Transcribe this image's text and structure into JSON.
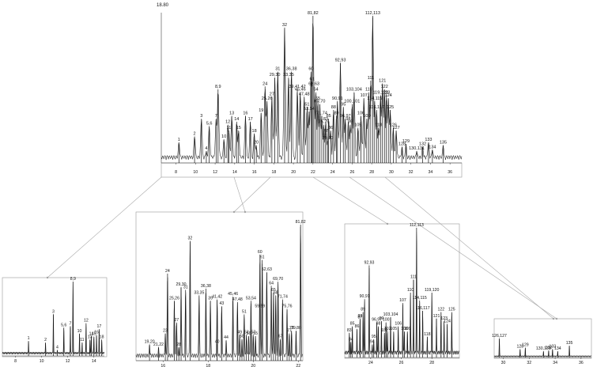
{
  "chart_data": [
    {
      "type": "line",
      "panel": "main",
      "ylabel": "",
      "y_top_label": "18.80",
      "xlabel": "",
      "x_ticks": [
        "8",
        "10",
        "12",
        "14",
        "16",
        "18",
        "20",
        "22",
        "24",
        "26",
        "28",
        "30",
        "32",
        "34",
        "36"
      ],
      "xlim": [
        6.5,
        37.2
      ],
      "ylim": [
        0,
        100
      ],
      "peaks": [
        {
          "label": "1",
          "x": 8.3,
          "y": 14
        },
        {
          "label": "2",
          "x": 9.9,
          "y": 18
        },
        {
          "label": "3",
          "x": 10.6,
          "y": 30
        },
        {
          "label": "4",
          "x": 11.1,
          "y": 8
        },
        {
          "label": "5,6",
          "x": 11.4,
          "y": 25
        },
        {
          "label": "7",
          "x": 12.1,
          "y": 30
        },
        {
          "label": "8,9",
          "x": 12.3,
          "y": 50
        },
        {
          "label": "10",
          "x": 12.9,
          "y": 16
        },
        {
          "label": "11",
          "x": 13.4,
          "y": 22
        },
        {
          "label": "12",
          "x": 13.3,
          "y": 26
        },
        {
          "label": "13",
          "x": 13.7,
          "y": 32
        },
        {
          "label": "14",
          "x": 14.2,
          "y": 28
        },
        {
          "label": "15",
          "x": 14.4,
          "y": 22
        },
        {
          "label": "16",
          "x": 15.1,
          "y": 32
        },
        {
          "label": "17",
          "x": 15.6,
          "y": 28
        },
        {
          "label": "18",
          "x": 16.0,
          "y": 20
        },
        {
          "label": "19",
          "x": 16.7,
          "y": 34
        },
        {
          "label": "20",
          "x": 16.2,
          "y": 12
        },
        {
          "label": "24",
          "x": 17.1,
          "y": 52
        },
        {
          "label": "25,26",
          "x": 17.3,
          "y": 42
        },
        {
          "label": "27",
          "x": 17.8,
          "y": 45
        },
        {
          "label": "29,30",
          "x": 18.1,
          "y": 58
        },
        {
          "label": "31",
          "x": 18.4,
          "y": 62
        },
        {
          "label": "32",
          "x": 19.1,
          "y": 92
        },
        {
          "label": "33,35",
          "x": 19.5,
          "y": 58
        },
        {
          "label": "36,38",
          "x": 19.8,
          "y": 62
        },
        {
          "label": "39,41,42",
          "x": 20.4,
          "y": 50
        },
        {
          "label": "45,46",
          "x": 20.7,
          "y": 48
        },
        {
          "label": "47,48",
          "x": 21.1,
          "y": 45
        },
        {
          "label": "51",
          "x": 21.4,
          "y": 38
        },
        {
          "label": "53,54",
          "x": 21.6,
          "y": 35
        },
        {
          "label": "60",
          "x": 21.8,
          "y": 62
        },
        {
          "label": "61",
          "x": 21.9,
          "y": 55
        },
        {
          "label": "62,63",
          "x": 22.1,
          "y": 52
        },
        {
          "label": "64",
          "x": 22.3,
          "y": 48
        },
        {
          "label": "65",
          "x": 22.5,
          "y": 42
        },
        {
          "label": "69,70",
          "x": 22.7,
          "y": 40
        },
        {
          "label": "71,74",
          "x": 22.9,
          "y": 32
        },
        {
          "label": "75,76",
          "x": 23.1,
          "y": 26
        },
        {
          "label": "77",
          "x": 23.3,
          "y": 20
        },
        {
          "label": "79,80",
          "x": 23.5,
          "y": 15
        },
        {
          "label": "81,82",
          "x": 22.0,
          "y": 100
        },
        {
          "label": "83",
          "x": 23.3,
          "y": 28
        },
        {
          "label": "85",
          "x": 23.6,
          "y": 30
        },
        {
          "label": "86",
          "x": 23.8,
          "y": 22
        },
        {
          "label": "88",
          "x": 24.1,
          "y": 36
        },
        {
          "label": "89",
          "x": 24.4,
          "y": 32
        },
        {
          "label": "90,91",
          "x": 24.5,
          "y": 42
        },
        {
          "label": "92,93",
          "x": 24.8,
          "y": 68
        },
        {
          "label": "95",
          "x": 25.1,
          "y": 38
        },
        {
          "label": "96,97",
          "x": 25.3,
          "y": 30
        },
        {
          "label": "98",
          "x": 25.6,
          "y": 28
        },
        {
          "label": "99",
          "x": 25.8,
          "y": 26
        },
        {
          "label": "100,101",
          "x": 26.0,
          "y": 40
        },
        {
          "label": "103,104",
          "x": 26.2,
          "y": 48
        },
        {
          "label": "105",
          "x": 26.6,
          "y": 24
        },
        {
          "label": "106",
          "x": 26.9,
          "y": 32
        },
        {
          "label": "107",
          "x": 27.2,
          "y": 44
        },
        {
          "label": "109",
          "x": 27.5,
          "y": 30
        },
        {
          "label": "110",
          "x": 27.7,
          "y": 48
        },
        {
          "label": "111",
          "x": 27.9,
          "y": 56
        },
        {
          "label": "112,113",
          "x": 28.1,
          "y": 100
        },
        {
          "label": "114,115",
          "x": 28.3,
          "y": 42
        },
        {
          "label": "116,117",
          "x": 28.5,
          "y": 36
        },
        {
          "label": "118",
          "x": 28.7,
          "y": 24
        },
        {
          "label": "119,120",
          "x": 28.9,
          "y": 46
        },
        {
          "label": "121",
          "x": 29.1,
          "y": 54
        },
        {
          "label": "122",
          "x": 29.3,
          "y": 50
        },
        {
          "label": "123",
          "x": 29.5,
          "y": 46
        },
        {
          "label": "124",
          "x": 29.7,
          "y": 44
        },
        {
          "label": "125",
          "x": 29.9,
          "y": 36
        },
        {
          "label": "126",
          "x": 30.2,
          "y": 24
        },
        {
          "label": "127",
          "x": 30.5,
          "y": 22
        },
        {
          "label": "128",
          "x": 31.1,
          "y": 11
        },
        {
          "label": "129",
          "x": 31.5,
          "y": 13
        },
        {
          "label": "130,131",
          "x": 32.6,
          "y": 8
        },
        {
          "label": "132",
          "x": 33.2,
          "y": 11
        },
        {
          "label": "133",
          "x": 33.8,
          "y": 14
        },
        {
          "label": "134",
          "x": 34.2,
          "y": 9
        },
        {
          "label": "135",
          "x": 35.3,
          "y": 12
        }
      ]
    },
    {
      "type": "line",
      "panel": "zoom-1",
      "x_ticks": [
        "8",
        "10",
        "12",
        "14"
      ],
      "xlim": [
        7,
        14.8
      ],
      "peaks": [
        {
          "label": "1",
          "x": 9.0,
          "y": 20
        },
        {
          "label": "2",
          "x": 10.3,
          "y": 18
        },
        {
          "label": "3",
          "x": 10.9,
          "y": 56
        },
        {
          "label": "4",
          "x": 11.2,
          "y": 8
        },
        {
          "label": "5,6",
          "x": 11.7,
          "y": 38
        },
        {
          "label": "7",
          "x": 12.2,
          "y": 40
        },
        {
          "label": "8,9",
          "x": 12.4,
          "y": 100
        },
        {
          "label": "10",
          "x": 12.9,
          "y": 30
        },
        {
          "label": "11",
          "x": 13.1,
          "y": 18
        },
        {
          "label": "12",
          "x": 13.4,
          "y": 44
        },
        {
          "label": "13",
          "x": 13.7,
          "y": 22
        },
        {
          "label": "14",
          "x": 13.8,
          "y": 26
        },
        {
          "label": "15",
          "x": 14.0,
          "y": 26
        },
        {
          "label": "16",
          "x": 14.2,
          "y": 28
        },
        {
          "label": "17",
          "x": 14.4,
          "y": 36
        },
        {
          "label": "18",
          "x": 14.6,
          "y": 22
        }
      ]
    },
    {
      "type": "line",
      "panel": "zoom-2",
      "x_ticks": [
        "16",
        "18",
        "20",
        "22"
      ],
      "xlim": [
        14.8,
        22.2
      ],
      "peaks": [
        {
          "label": "19,20",
          "x": 15.4,
          "y": 12
        },
        {
          "label": "21,22",
          "x": 15.8,
          "y": 10
        },
        {
          "label": "23",
          "x": 16.1,
          "y": 20
        },
        {
          "label": "24",
          "x": 16.2,
          "y": 64
        },
        {
          "label": "25,26",
          "x": 16.5,
          "y": 44
        },
        {
          "label": "27",
          "x": 16.6,
          "y": 28
        },
        {
          "label": "28",
          "x": 16.7,
          "y": 10
        },
        {
          "label": "29,30",
          "x": 16.8,
          "y": 54
        },
        {
          "label": "31",
          "x": 17.0,
          "y": 52
        },
        {
          "label": "32",
          "x": 17.2,
          "y": 88
        },
        {
          "label": "33,35",
          "x": 17.6,
          "y": 48
        },
        {
          "label": "36,38",
          "x": 17.9,
          "y": 53
        },
        {
          "label": "39",
          "x": 18.1,
          "y": 44
        },
        {
          "label": "40",
          "x": 18.4,
          "y": 12
        },
        {
          "label": "41,42",
          "x": 18.4,
          "y": 45
        },
        {
          "label": "43",
          "x": 18.6,
          "y": 40
        },
        {
          "label": "44",
          "x": 18.8,
          "y": 15
        },
        {
          "label": "45,46",
          "x": 19.1,
          "y": 47
        },
        {
          "label": "47,48",
          "x": 19.3,
          "y": 43
        },
        {
          "label": "49",
          "x": 19.4,
          "y": 19
        },
        {
          "label": "51",
          "x": 19.6,
          "y": 34
        },
        {
          "label": "52",
          "x": 19.7,
          "y": 19
        },
        {
          "label": "53,54",
          "x": 19.9,
          "y": 44
        },
        {
          "label": "55",
          "x": 20.1,
          "y": 18
        },
        {
          "label": "56",
          "x": 19.8,
          "y": 18
        },
        {
          "label": "57",
          "x": 20.0,
          "y": 19
        },
        {
          "label": "58",
          "x": 19.5,
          "y": 16
        },
        {
          "label": "59,59",
          "x": 20.3,
          "y": 38
        },
        {
          "label": "60",
          "x": 20.3,
          "y": 78
        },
        {
          "label": "61",
          "x": 20.4,
          "y": 74
        },
        {
          "label": "62,63",
          "x": 20.6,
          "y": 65
        },
        {
          "label": "64",
          "x": 20.8,
          "y": 55
        },
        {
          "label": "65",
          "x": 20.9,
          "y": 50
        },
        {
          "label": "67",
          "x": 21.2,
          "y": 16
        },
        {
          "label": "68",
          "x": 21.0,
          "y": 48
        },
        {
          "label": "69,70",
          "x": 21.1,
          "y": 58
        },
        {
          "label": "71,74",
          "x": 21.3,
          "y": 45
        },
        {
          "label": "75,76",
          "x": 21.5,
          "y": 38
        },
        {
          "label": "77",
          "x": 21.6,
          "y": 20
        },
        {
          "label": "78",
          "x": 21.7,
          "y": 22
        },
        {
          "label": "79,80",
          "x": 21.9,
          "y": 22
        },
        {
          "label": "81,82",
          "x": 22.1,
          "y": 100
        }
      ]
    },
    {
      "type": "line",
      "panel": "zoom-3",
      "x_ticks": [
        "24",
        "26",
        "28"
      ],
      "xlim": [
        22.3,
        29.8
      ],
      "peaks": [
        {
          "label": "83",
          "x": 22.6,
          "y": 19
        },
        {
          "label": "84",
          "x": 22.7,
          "y": 12
        },
        {
          "label": "85",
          "x": 22.8,
          "y": 24
        },
        {
          "label": "86",
          "x": 23.1,
          "y": 22
        },
        {
          "label": "87",
          "x": 23.3,
          "y": 29
        },
        {
          "label": "88",
          "x": 23.3,
          "y": 30
        },
        {
          "label": "89",
          "x": 23.5,
          "y": 35
        },
        {
          "label": "90,91",
          "x": 23.6,
          "y": 45
        },
        {
          "label": "92,93",
          "x": 23.9,
          "y": 71
        },
        {
          "label": "94",
          "x": 24.1,
          "y": 10
        },
        {
          "label": "95",
          "x": 24.2,
          "y": 14
        },
        {
          "label": "96,97",
          "x": 24.4,
          "y": 27
        },
        {
          "label": "98",
          "x": 24.5,
          "y": 24
        },
        {
          "label": "99",
          "x": 24.7,
          "y": 28
        },
        {
          "label": "100",
          "x": 25.0,
          "y": 27
        },
        {
          "label": "101",
          "x": 24.9,
          "y": 19
        },
        {
          "label": "102",
          "x": 25.1,
          "y": 20
        },
        {
          "label": "103,104",
          "x": 25.3,
          "y": 31
        },
        {
          "label": "105",
          "x": 25.5,
          "y": 20
        },
        {
          "label": "106",
          "x": 25.8,
          "y": 24
        },
        {
          "label": "107",
          "x": 26.1,
          "y": 42
        },
        {
          "label": "108",
          "x": 26.2,
          "y": 20
        },
        {
          "label": "109",
          "x": 26.4,
          "y": 20
        },
        {
          "label": "110",
          "x": 26.6,
          "y": 50
        },
        {
          "label": "111",
          "x": 26.8,
          "y": 60
        },
        {
          "label": "112,113",
          "x": 27.0,
          "y": 100
        },
        {
          "label": "114,115",
          "x": 27.2,
          "y": 44
        },
        {
          "label": "116,117",
          "x": 27.4,
          "y": 36
        },
        {
          "label": "118",
          "x": 27.7,
          "y": 16
        },
        {
          "label": "119,120",
          "x": 28.0,
          "y": 50
        },
        {
          "label": "121",
          "x": 28.3,
          "y": 30
        },
        {
          "label": "122",
          "x": 28.6,
          "y": 35
        },
        {
          "label": "123",
          "x": 28.8,
          "y": 28
        },
        {
          "label": "124",
          "x": 29.0,
          "y": 26
        },
        {
          "label": "125",
          "x": 29.3,
          "y": 35
        }
      ]
    },
    {
      "type": "line",
      "panel": "zoom-4",
      "x_ticks": [
        "30",
        "32",
        "34",
        "36"
      ],
      "xlim": [
        29.3,
        36.8
      ],
      "peaks": [
        {
          "label": "126,127",
          "x": 29.7,
          "y": 55
        },
        {
          "label": "128",
          "x": 31.3,
          "y": 24
        },
        {
          "label": "129",
          "x": 31.7,
          "y": 28
        },
        {
          "label": "130,131",
          "x": 33.1,
          "y": 18
        },
        {
          "label": "132",
          "x": 33.5,
          "y": 20
        },
        {
          "label": "133",
          "x": 33.8,
          "y": 24
        },
        {
          "label": "134",
          "x": 34.2,
          "y": 18
        },
        {
          "label": "135",
          "x": 35.1,
          "y": 34
        }
      ]
    }
  ]
}
